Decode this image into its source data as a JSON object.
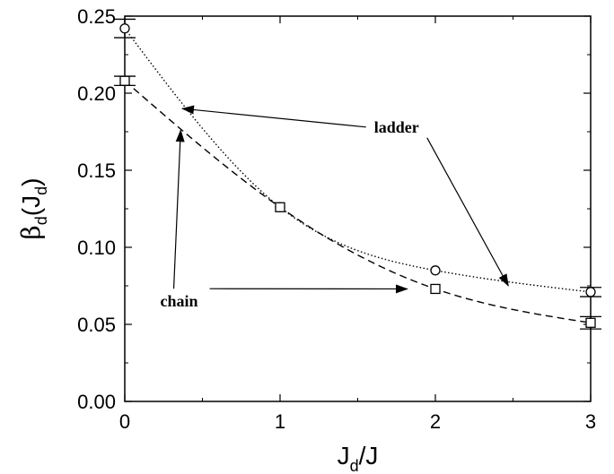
{
  "chart_data": {
    "type": "line",
    "xlim": [
      0,
      3
    ],
    "ylim": [
      0.0,
      0.25
    ],
    "x_ticks": [
      "0",
      "1",
      "2",
      "3"
    ],
    "y_ticks": [
      "0.00",
      "0.05",
      "0.10",
      "0.15",
      "0.20",
      "0.25"
    ],
    "xlabel": {
      "main": "J",
      "sub": "d",
      "rest": "/J"
    },
    "ylabel": {
      "beta": "β",
      "sub1": "d",
      "open": "(J",
      "sub2": "d",
      "close": ")"
    },
    "series": [
      {
        "name": "ladder",
        "marker": "circle",
        "line_style": "dotted",
        "points": [
          {
            "x": 0,
            "y": 0.242,
            "err": 0.006
          },
          {
            "x": 1,
            "y": 0.126,
            "err": 0.0
          },
          {
            "x": 2,
            "y": 0.085,
            "err": 0.0
          },
          {
            "x": 3,
            "y": 0.071,
            "err": 0.003
          }
        ]
      },
      {
        "name": "chain",
        "marker": "square",
        "line_style": "dashed",
        "points": [
          {
            "x": 0,
            "y": 0.208,
            "err": 0.003
          },
          {
            "x": 1,
            "y": 0.126,
            "err": 0.0
          },
          {
            "x": 2,
            "y": 0.073,
            "err": 0.0
          },
          {
            "x": 3,
            "y": 0.051,
            "err": 0.004
          }
        ]
      }
    ],
    "annotations": [
      {
        "text": "ladder",
        "x": 1.75,
        "y": 0.178,
        "arrows_to": [
          [
            0.37,
            0.19
          ],
          [
            2.47,
            0.075
          ]
        ]
      },
      {
        "text": "chain",
        "x": 0.35,
        "y": 0.065,
        "arrows_to": [
          [
            0.36,
            0.176
          ],
          [
            1.82,
            0.073
          ]
        ]
      }
    ]
  }
}
